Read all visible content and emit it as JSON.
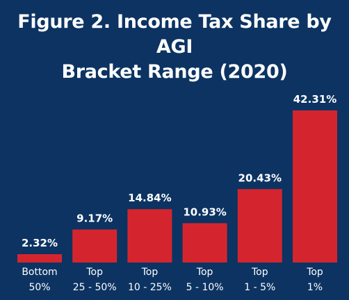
{
  "chart_data": {
    "type": "bar",
    "title_lines": [
      "Figure 2. Income Tax Share by AGI",
      "Bracket Range (2020)"
    ],
    "categories": [
      [
        "Bottom",
        "50%"
      ],
      [
        "Top",
        "25 - 50%"
      ],
      [
        "Top",
        "10 - 25%"
      ],
      [
        "Top",
        "5 - 10%"
      ],
      [
        "Top",
        "1 - 5%"
      ],
      [
        "Top",
        "1%"
      ]
    ],
    "values": [
      2.32,
      9.17,
      14.84,
      10.93,
      20.43,
      42.31
    ],
    "value_labels": [
      "2.32%",
      "9.17%",
      "14.84%",
      "10.93%",
      "20.43%",
      "42.31%"
    ],
    "unit": "%",
    "ylim": [
      0,
      42.31
    ],
    "xlabel": "",
    "ylabel": "",
    "grid": false,
    "bar_color": "#d4252f",
    "background_color": "#0c3362",
    "text_color": "#ffffff"
  }
}
